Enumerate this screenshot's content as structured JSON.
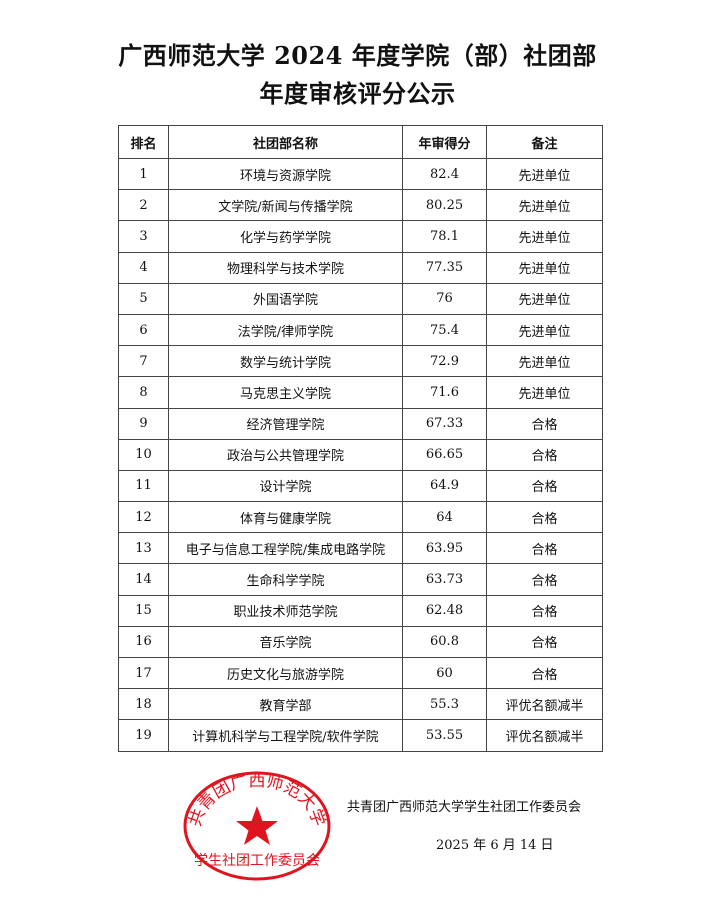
{
  "title_line1": "广西师范大学 2024 年度学院（部）社团部",
  "title_line2": "年度审核评分公示",
  "table": {
    "headers": [
      "排名",
      "社团部名称",
      "年审得分",
      "备注"
    ],
    "rows": [
      [
        "1",
        "环境与资源学院",
        "82.4",
        "先进单位"
      ],
      [
        "2",
        "文学院/新闻与传播学院",
        "80.25",
        "先进单位"
      ],
      [
        "3",
        "化学与药学学院",
        "78.1",
        "先进单位"
      ],
      [
        "4",
        "物理科学与技术学院",
        "77.35",
        "先进单位"
      ],
      [
        "5",
        "外国语学院",
        "76",
        "先进单位"
      ],
      [
        "6",
        "法学院/律师学院",
        "75.4",
        "先进单位"
      ],
      [
        "7",
        "数学与统计学院",
        "72.9",
        "先进单位"
      ],
      [
        "8",
        "马克思主义学院",
        "71.6",
        "先进单位"
      ],
      [
        "9",
        "经济管理学院",
        "67.33",
        "合格"
      ],
      [
        "10",
        "政治与公共管理学院",
        "66.65",
        "合格"
      ],
      [
        "11",
        "设计学院",
        "64.9",
        "合格"
      ],
      [
        "12",
        "体育与健康学院",
        "64",
        "合格"
      ],
      [
        "13",
        "电子与信息工程学院/集成电路学院",
        "63.95",
        "合格"
      ],
      [
        "14",
        "生命科学学院",
        "63.73",
        "合格"
      ],
      [
        "15",
        "职业技术师范学院",
        "62.48",
        "合格"
      ],
      [
        "16",
        "音乐学院",
        "60.8",
        "合格"
      ],
      [
        "17",
        "历史文化与旅游学院",
        "60",
        "合格"
      ],
      [
        "18",
        "教育学部",
        "55.3",
        "评优名额减半"
      ],
      [
        "19",
        "计算机科学与工程学院/软件学院",
        "53.55",
        "评优名额减半"
      ]
    ]
  },
  "signature": {
    "org": "共青团广西师范大学学生社团工作委员会",
    "date": "2025 年 6 月 14 日"
  },
  "stamp": {
    "arc_text": "共青团广西师范大学",
    "bottom_text": "学生社团工作委员会",
    "color": "#e0141e"
  }
}
